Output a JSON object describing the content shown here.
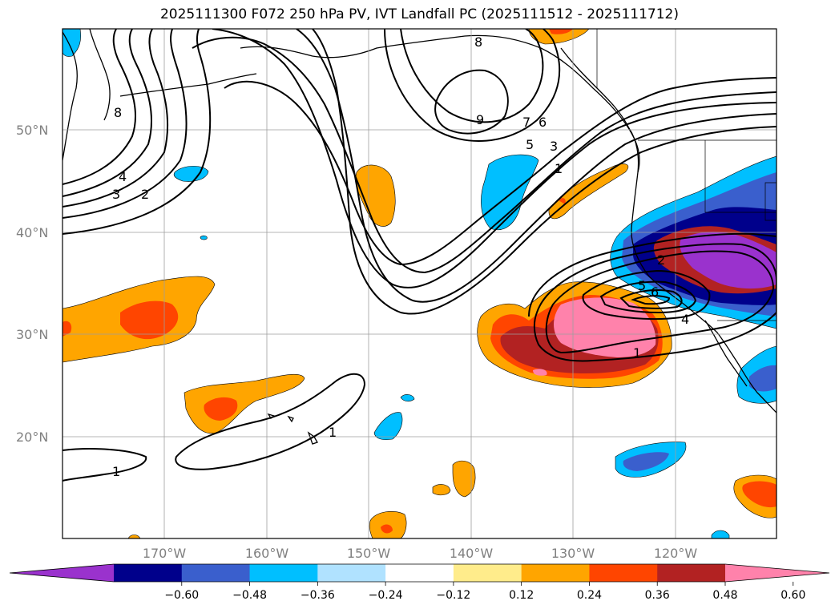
{
  "title": "2025111300 F072 250 hPa PV, IVT Landfall PC (2025111512 - 2025111712)",
  "lat_ticks": [
    "50°N",
    "40°N",
    "30°N",
    "20°N"
  ],
  "lon_ticks": [
    "170°W",
    "160°W",
    "150°W",
    "140°W",
    "130°W",
    "120°W"
  ],
  "colorbar": {
    "tick_labels": [
      "−0.60",
      "−0.48",
      "−0.36",
      "−0.24",
      "−0.12",
      "0.12",
      "0.24",
      "0.36",
      "0.48",
      "0.60"
    ],
    "colors": [
      "#9a32cd",
      "#00008b",
      "#3a5fcd",
      "#00bfff",
      "#b0e2ff",
      "#ffffff",
      "#ffec8b",
      "#ffa500",
      "#ff4500",
      "#b22222",
      "#ff82ab"
    ]
  },
  "contour_labels": [
    "8",
    "9",
    "7",
    "6",
    "5",
    "3",
    "1",
    "4",
    "3",
    "2",
    "1",
    "1",
    "2",
    "6",
    "5",
    "4",
    "1",
    "8"
  ],
  "colors": {
    "neg_purple": "#9a32cd",
    "neg_navy": "#00008b",
    "neg_blue": "#3a5fcd",
    "neg_sky": "#00bfff",
    "pos_orange": "#ffa500",
    "pos_red": "#ff4500",
    "pos_brick": "#b22222",
    "pos_pink": "#ff82ab"
  }
}
